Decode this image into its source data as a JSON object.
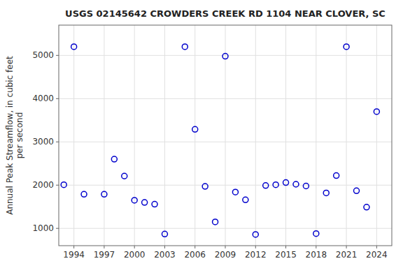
{
  "chart_data": {
    "type": "scatter",
    "title": "USGS 02145642 CROWDERS CREEK RD 1104 NEAR CLOVER, SC",
    "ylabel": "Annual Peak Streamflow, in cubic feet\nper second",
    "x": [
      1993,
      1994,
      1995,
      1997,
      1998,
      1999,
      2000,
      2001,
      2002,
      2003,
      2005,
      2006,
      2007,
      2008,
      2009,
      2010,
      2011,
      2012,
      2013,
      2014,
      2015,
      2016,
      2017,
      2018,
      2019,
      2020,
      2021,
      2022,
      2023,
      2024
    ],
    "values": [
      2010,
      5200,
      1790,
      1790,
      2600,
      2210,
      1650,
      1600,
      1560,
      870,
      5200,
      3290,
      1970,
      1150,
      4980,
      1840,
      1660,
      860,
      1990,
      2010,
      2060,
      2020,
      1980,
      880,
      1820,
      2220,
      5200,
      1870,
      1490,
      3700
    ],
    "xlim": [
      1992.5,
      2025.5
    ],
    "ylim": [
      600,
      5700
    ],
    "xticks": [
      1994,
      1997,
      2000,
      2003,
      2006,
      2009,
      2012,
      2015,
      2018,
      2021,
      2024
    ],
    "yticks": [
      1000,
      2000,
      3000,
      4000,
      5000
    ],
    "color": "#0000cc",
    "marker": "circle",
    "grid": true
  }
}
